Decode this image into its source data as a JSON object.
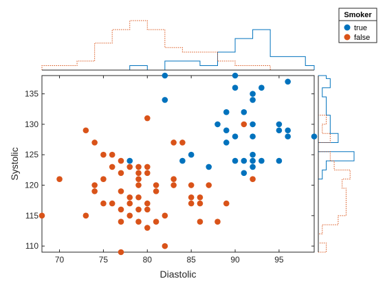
{
  "chart_data": {
    "type": "scatter",
    "xlabel": "Diastolic",
    "ylabel": "Systolic",
    "xlim": [
      68,
      99
    ],
    "ylim": [
      109,
      138
    ],
    "xticks": [
      70,
      75,
      80,
      85,
      90,
      95
    ],
    "yticks": [
      110,
      115,
      120,
      125,
      130,
      135
    ],
    "grid": false,
    "legend": {
      "title": "Smoker",
      "placement": "top-right",
      "entries": [
        "true",
        "false"
      ]
    },
    "marginal_histograms": {
      "top": {
        "axis": "x",
        "style": "stairs"
      },
      "right": {
        "axis": "y",
        "style": "stairs"
      },
      "true_style": "solid",
      "false_style": "dotted"
    },
    "series": [
      {
        "name": "true",
        "color": "#0072BD",
        "points": [
          [
            78,
            124
          ],
          [
            82,
            134
          ],
          [
            82,
            138
          ],
          [
            84,
            124
          ],
          [
            85,
            125
          ],
          [
            87,
            123
          ],
          [
            88,
            130
          ],
          [
            89,
            132
          ],
          [
            89,
            129
          ],
          [
            89,
            127
          ],
          [
            90,
            138
          ],
          [
            90,
            136
          ],
          [
            90,
            128
          ],
          [
            90,
            124
          ],
          [
            91,
            132
          ],
          [
            91,
            124
          ],
          [
            91,
            122
          ],
          [
            92,
            135
          ],
          [
            92,
            134
          ],
          [
            92,
            130
          ],
          [
            92,
            128
          ],
          [
            92,
            125
          ],
          [
            92,
            124
          ],
          [
            92,
            123
          ],
          [
            93,
            136
          ],
          [
            93,
            124
          ],
          [
            95,
            130
          ],
          [
            95,
            129
          ],
          [
            95,
            124
          ],
          [
            96,
            137
          ],
          [
            96,
            129
          ],
          [
            96,
            128
          ],
          [
            99,
            128
          ]
        ]
      },
      {
        "name": "false",
        "color": "#D95319",
        "points": [
          [
            68,
            115
          ],
          [
            70,
            121
          ],
          [
            73,
            129
          ],
          [
            73,
            115
          ],
          [
            74,
            127
          ],
          [
            74,
            120
          ],
          [
            74,
            119
          ],
          [
            75,
            125
          ],
          [
            75,
            121
          ],
          [
            75,
            117
          ],
          [
            76,
            125
          ],
          [
            76,
            123
          ],
          [
            76,
            117
          ],
          [
            77,
            124
          ],
          [
            77,
            122
          ],
          [
            77,
            119
          ],
          [
            77,
            116
          ],
          [
            77,
            114
          ],
          [
            77,
            109
          ],
          [
            78,
            123
          ],
          [
            78,
            118
          ],
          [
            78,
            117
          ],
          [
            78,
            115
          ],
          [
            79,
            123
          ],
          [
            79,
            122
          ],
          [
            79,
            121
          ],
          [
            79,
            120
          ],
          [
            79,
            118
          ],
          [
            79,
            116
          ],
          [
            79,
            114
          ],
          [
            80,
            131
          ],
          [
            80,
            123
          ],
          [
            80,
            122
          ],
          [
            80,
            117
          ],
          [
            80,
            116
          ],
          [
            80,
            113
          ],
          [
            81,
            120
          ],
          [
            81,
            119
          ],
          [
            81,
            114
          ],
          [
            82,
            115
          ],
          [
            82,
            110
          ],
          [
            83,
            127
          ],
          [
            83,
            121
          ],
          [
            83,
            120
          ],
          [
            84,
            127
          ],
          [
            85,
            120
          ],
          [
            85,
            118
          ],
          [
            85,
            117
          ],
          [
            86,
            118
          ],
          [
            86,
            117
          ],
          [
            86,
            114
          ],
          [
            87,
            120
          ],
          [
            88,
            114
          ],
          [
            89,
            117
          ],
          [
            91,
            130
          ],
          [
            92,
            121
          ]
        ]
      }
    ]
  }
}
